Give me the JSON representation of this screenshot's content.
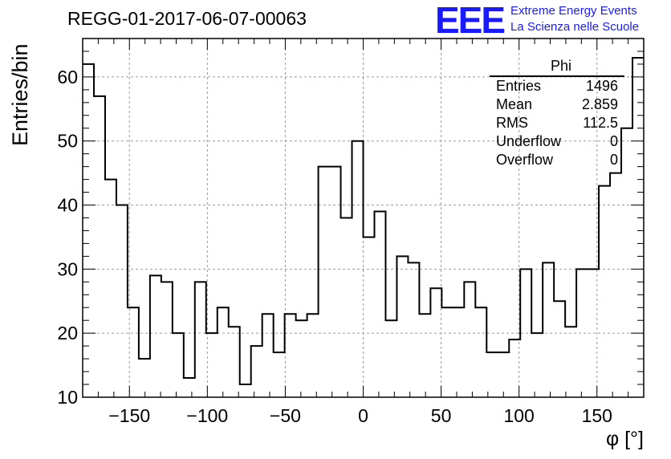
{
  "title": "REGG-01-2017-06-07-00063",
  "logo": {
    "mark": "EEE",
    "line1": "Extreme Energy Events",
    "line2": "La Scienza nelle Scuole"
  },
  "stats": {
    "name": "Phi",
    "rows": [
      {
        "label": "Entries",
        "value": "1496"
      },
      {
        "label": "Mean",
        "value": "2.859"
      },
      {
        "label": "RMS",
        "value": "112.5"
      },
      {
        "label": "Underflow",
        "value": "0"
      },
      {
        "label": "Overflow",
        "value": "0"
      }
    ]
  },
  "chart_data": {
    "type": "bar",
    "style": "step-histogram",
    "title": "REGG-01-2017-06-07-00063",
    "xlabel": "φ [°]",
    "ylabel": "Entries/bin",
    "xlim": [
      -180,
      180
    ],
    "ylim": [
      10,
      66
    ],
    "grid": true,
    "bin_width": 7.2,
    "bin_edges_start": -180,
    "values": [
      62,
      57,
      44,
      40,
      24,
      16,
      29,
      28,
      20,
      13,
      28,
      20,
      24,
      21,
      12,
      18,
      23,
      17,
      23,
      22,
      23,
      46,
      46,
      38,
      50,
      35,
      39,
      22,
      32,
      31,
      23,
      27,
      24,
      24,
      28,
      24,
      17,
      17,
      19,
      30,
      20,
      31,
      25,
      21,
      30,
      30,
      43,
      45,
      52,
      63
    ],
    "x_ticks": [
      -150,
      -100,
      -50,
      0,
      50,
      100,
      150
    ],
    "x_tick_labels": [
      "−150",
      "−100",
      "−50",
      "0",
      "50",
      "100",
      "150"
    ],
    "y_ticks": [
      10,
      20,
      30,
      40,
      50,
      60
    ],
    "y_tick_labels": [
      "10",
      "20",
      "30",
      "40",
      "50",
      "60"
    ],
    "colors": {
      "line": "#000000",
      "grid": "#9a9a9a",
      "logo": "#1a1aff"
    }
  }
}
